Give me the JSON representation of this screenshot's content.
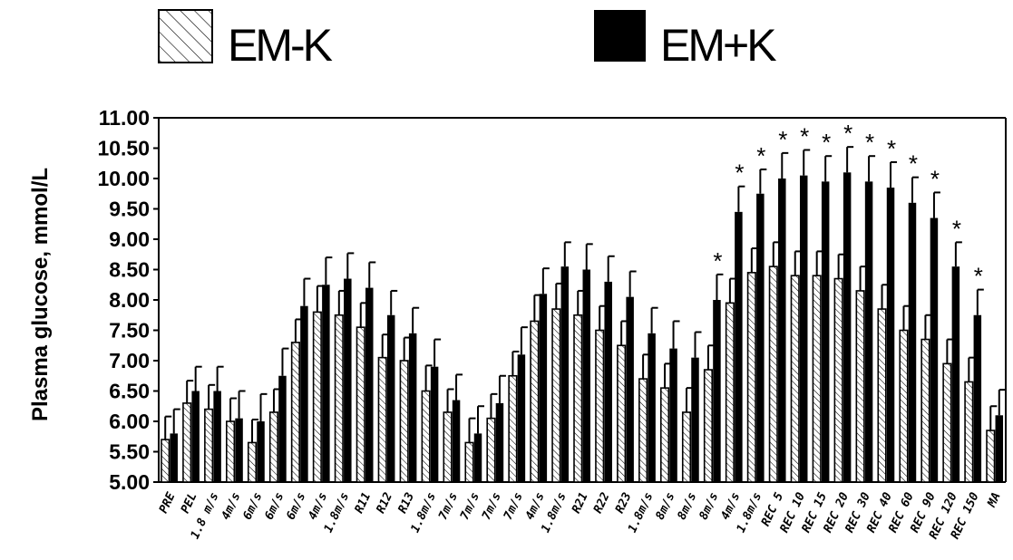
{
  "chart_data": {
    "type": "bar",
    "ylabel": "Plasma glucose, mmol/L",
    "xlabel": "",
    "ylim": [
      5.0,
      11.0
    ],
    "yticks": [
      "5.00",
      "5.50",
      "6.00",
      "6.50",
      "7.00",
      "7.50",
      "8.00",
      "8.50",
      "9.00",
      "9.50",
      "10.00",
      "10.50",
      "11.00"
    ],
    "grid": false,
    "legend_position": "top",
    "categories": [
      "PRE",
      "PEL",
      "1.8 m/s",
      "4m/s",
      "6m/s",
      "6m/s",
      "6m/s",
      "4m/s",
      "1.8m/s",
      "R11",
      "R12",
      "R13",
      "1.8m/s",
      "7m/s",
      "7m/s",
      "7m/s",
      "7m/s",
      "4m/s",
      "1.8m/s",
      "R21",
      "R22",
      "R23",
      "1.8m/s",
      "8m/s",
      "8m/s",
      "8m/s",
      "4m/s",
      "1.8m/s",
      "REC 5",
      "REC 10",
      "REC 15",
      "REC 20",
      "REC 30",
      "REC 40",
      "REC 60",
      "REC 90",
      "REC 120",
      "REC 150",
      "MA"
    ],
    "series": [
      {
        "name": "EM-K",
        "pattern": "hatched",
        "values": [
          5.7,
          6.3,
          6.2,
          6.0,
          5.65,
          6.15,
          7.3,
          7.8,
          7.75,
          7.55,
          7.05,
          7.0,
          6.5,
          6.15,
          5.65,
          6.05,
          6.75,
          7.65,
          7.85,
          7.75,
          7.5,
          7.25,
          6.7,
          6.55,
          6.15,
          6.85,
          7.95,
          8.45,
          8.55,
          8.4,
          8.4,
          8.35,
          8.15,
          7.85,
          7.5,
          7.35,
          6.95,
          6.65,
          5.85
        ],
        "errors": [
          0.38,
          0.37,
          0.4,
          0.38,
          0.38,
          0.38,
          0.38,
          0.43,
          0.4,
          0.4,
          0.38,
          0.38,
          0.42,
          0.38,
          0.4,
          0.4,
          0.4,
          0.43,
          0.42,
          0.4,
          0.4,
          0.4,
          0.4,
          0.4,
          0.4,
          0.4,
          0.4,
          0.4,
          0.4,
          0.4,
          0.4,
          0.4,
          0.4,
          0.4,
          0.4,
          0.4,
          0.4,
          0.4,
          0.4
        ]
      },
      {
        "name": "EM+K",
        "pattern": "solid",
        "values": [
          5.8,
          6.5,
          6.5,
          6.05,
          6.0,
          6.75,
          7.9,
          8.25,
          8.35,
          8.2,
          7.75,
          7.45,
          6.9,
          6.35,
          5.8,
          6.3,
          7.1,
          8.1,
          8.55,
          8.5,
          8.3,
          8.05,
          7.45,
          7.2,
          7.05,
          8.0,
          9.45,
          9.75,
          10.0,
          10.05,
          9.95,
          10.1,
          9.95,
          9.85,
          9.6,
          9.35,
          8.55,
          7.75,
          6.1
        ],
        "errors": [
          0.4,
          0.4,
          0.4,
          0.45,
          0.45,
          0.45,
          0.45,
          0.45,
          0.42,
          0.42,
          0.4,
          0.42,
          0.45,
          0.42,
          0.45,
          0.45,
          0.45,
          0.42,
          0.4,
          0.42,
          0.42,
          0.42,
          0.42,
          0.45,
          0.42,
          0.42,
          0.42,
          0.4,
          0.42,
          0.42,
          0.42,
          0.42,
          0.42,
          0.42,
          0.42,
          0.42,
          0.4,
          0.42,
          0.42
        ]
      }
    ],
    "annotations": {
      "symbol": "*",
      "categories": [
        "8m/s",
        "4m/s",
        "1.8m/s",
        "REC 5",
        "REC 10",
        "REC 15",
        "REC 20",
        "REC 30",
        "REC 40",
        "REC 60",
        "REC 90",
        "REC 120",
        "REC 150"
      ],
      "note": "marks are placed over the EM+K bar of the last 8m/s and the following categories"
    },
    "star_indices": [
      25,
      26,
      27,
      28,
      29,
      30,
      31,
      32,
      33,
      34,
      35,
      36,
      37
    ]
  },
  "colors": {
    "axis": "#000000",
    "bar_fill_em_plus_k": "#000000",
    "bar_fill_em_minus_k": "#ffffff",
    "hatch": "#000000",
    "background": "#ffffff"
  }
}
